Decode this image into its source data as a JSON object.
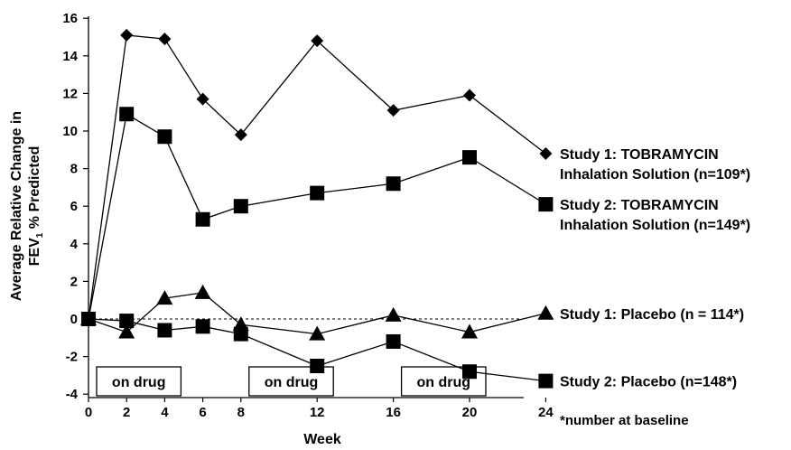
{
  "chart_data": {
    "type": "line",
    "xlabel": "Week",
    "ylabel_line1": "Average Relative Change in",
    "ylabel_line2_prefix": "FEV",
    "ylabel_line2_sub": "1",
    "ylabel_line2_suffix": " % Predicted",
    "xticks": [
      0,
      2,
      4,
      6,
      8,
      12,
      16,
      20,
      24
    ],
    "yticks": [
      -4,
      -2,
      0,
      2,
      4,
      6,
      8,
      10,
      12,
      14,
      16
    ],
    "ylim": [
      -4,
      16
    ],
    "baseline": 0,
    "series": [
      {
        "name": "Study 1: TOBRAMYCIN Inhalation Solution (n=109*)",
        "label_lines": [
          "Study 1: TOBRAMYCIN",
          "Inhalation Solution (n=109*)"
        ],
        "marker": "diamond",
        "x": [
          0,
          2,
          4,
          6,
          8,
          12,
          16,
          20,
          24
        ],
        "y": [
          0,
          15.1,
          14.9,
          11.7,
          9.8,
          14.8,
          11.1,
          11.9,
          8.8
        ]
      },
      {
        "name": "Study 2: TOBRAMYCIN Inhalation Solution (n=149*)",
        "label_lines": [
          "Study 2: TOBRAMYCIN",
          "Inhalation Solution (n=149*)"
        ],
        "marker": "square",
        "x": [
          0,
          2,
          4,
          6,
          8,
          12,
          16,
          20,
          24
        ],
        "y": [
          0,
          10.9,
          9.7,
          5.3,
          6.0,
          6.7,
          7.2,
          8.6,
          6.1
        ]
      },
      {
        "name": "Study 1: Placebo (n = 114*)",
        "label_lines": [
          "Study 1: Placebo (n = 114*)"
        ],
        "marker": "triangle",
        "x": [
          0,
          2,
          4,
          6,
          8,
          12,
          16,
          20,
          24
        ],
        "y": [
          0,
          -0.7,
          1.1,
          1.4,
          -0.3,
          -0.8,
          0.2,
          -0.7,
          0.3
        ]
      },
      {
        "name": "Study 2: Placebo (n=148*)",
        "label_lines": [
          "Study 2: Placebo (n=148*)"
        ],
        "marker": "square",
        "x": [
          0,
          2,
          4,
          6,
          8,
          12,
          16,
          20,
          24
        ],
        "y": [
          0,
          -0.1,
          -0.6,
          -0.4,
          -0.8,
          -2.5,
          -1.2,
          -2.8,
          -3.3
        ]
      }
    ],
    "drug_periods": [
      {
        "label": "on drug",
        "start_week": 0,
        "end_week": 4
      },
      {
        "label": "on drug",
        "start_week": 8,
        "end_week": 12
      },
      {
        "label": "on drug",
        "start_week": 16,
        "end_week": 20
      }
    ],
    "footnote": "*number at baseline",
    "grid": false,
    "legend_placement": "right"
  }
}
